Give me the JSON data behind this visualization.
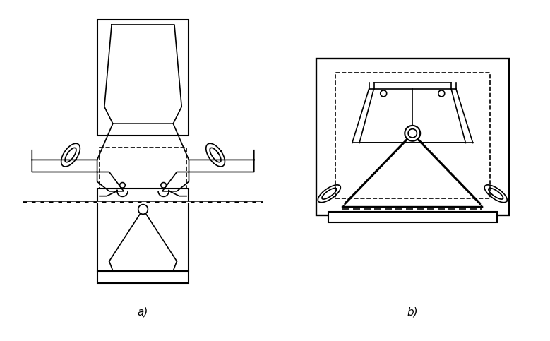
{
  "fig_width": 7.79,
  "fig_height": 4.83,
  "dpi": 100,
  "bg_color": "#ffffff",
  "line_color": "#000000",
  "line_width": 1.2,
  "label_a": "a)",
  "label_b": "b)",
  "label_fontsize": 11
}
